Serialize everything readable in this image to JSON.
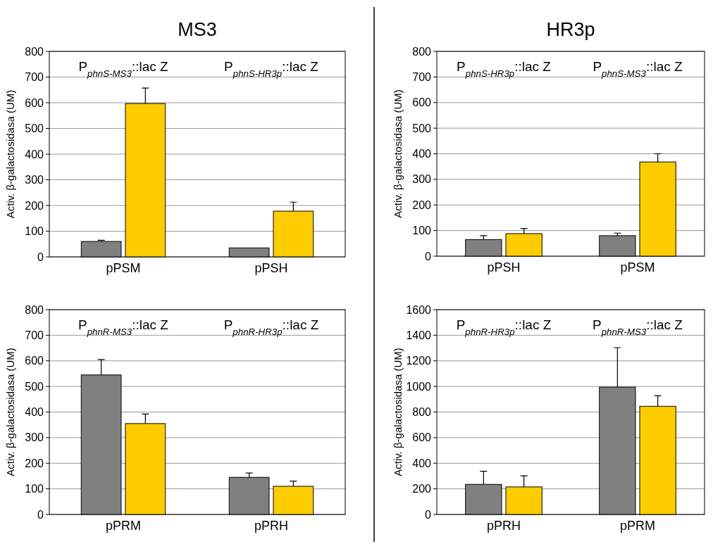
{
  "chart_data": [
    {
      "type": "bar",
      "title": "MS3",
      "ylabel": "Activ. β-galactosidasa (UM)",
      "categories": [
        "pPSM",
        "pPSH"
      ],
      "ylim": [
        0,
        800
      ],
      "yticks": [
        0,
        100,
        200,
        300,
        400,
        500,
        600,
        700,
        800
      ],
      "grid": "y",
      "annotations": [
        "P$_{phnS-MS3}$::lac Z",
        "P$_{phnS-HR3p}$::lac Z"
      ],
      "series": [
        {
          "color": "#808080",
          "values": [
            60,
            35
          ],
          "errors": [
            5,
            null
          ]
        },
        {
          "color": "#ffcc00",
          "values": [
            597,
            178
          ],
          "errors": [
            60,
            35
          ]
        }
      ]
    },
    {
      "type": "bar",
      "title": "HR3p",
      "ylabel": "Activ. β-galactosidasa (UM)",
      "categories": [
        "pPSH",
        "pPSM"
      ],
      "ylim": [
        0,
        800
      ],
      "yticks": [
        0,
        100,
        200,
        300,
        400,
        500,
        600,
        700,
        800
      ],
      "grid": "y",
      "annotations": [
        "P$_{phnS-HR3p}$::lac Z",
        "P$_{phnS-MS3}$::lac Z"
      ],
      "series": [
        {
          "color": "#808080",
          "values": [
            65,
            80
          ],
          "errors": [
            15,
            10
          ]
        },
        {
          "color": "#ffcc00",
          "values": [
            88,
            368
          ],
          "errors": [
            20,
            32
          ]
        }
      ]
    },
    {
      "type": "bar",
      "ylabel": "Activ. β-galactosidasa (UM)",
      "categories": [
        "pPRM",
        "pPRH"
      ],
      "ylim": [
        0,
        800
      ],
      "yticks": [
        0,
        100,
        200,
        300,
        400,
        500,
        600,
        700,
        800
      ],
      "grid": "y",
      "annotations": [
        "P$_{phnR-MS3}$::lac Z",
        "P$_{phnR-HR3p}$::lac Z"
      ],
      "series": [
        {
          "color": "#808080",
          "values": [
            545,
            145
          ],
          "errors": [
            60,
            17
          ]
        },
        {
          "color": "#ffcc00",
          "values": [
            355,
            110
          ],
          "errors": [
            37,
            20
          ]
        }
      ]
    },
    {
      "type": "bar",
      "ylabel": "Activ. β-galactosidasa (UM)",
      "categories": [
        "pPRH",
        "pPRM"
      ],
      "ylim": [
        0,
        1600
      ],
      "yticks": [
        0,
        200,
        400,
        600,
        800,
        1000,
        1200,
        1400,
        1600
      ],
      "grid": "y",
      "annotations": [
        "P$_{phnR-HR3p}$::lac Z",
        "P$_{phnR-MS3}$::lac Z"
      ],
      "series": [
        {
          "color": "#808080",
          "values": [
            235,
            995
          ],
          "errors": [
            103,
            308
          ]
        },
        {
          "color": "#ffcc00",
          "values": [
            215,
            845
          ],
          "errors": [
            87,
            82
          ]
        }
      ]
    }
  ]
}
